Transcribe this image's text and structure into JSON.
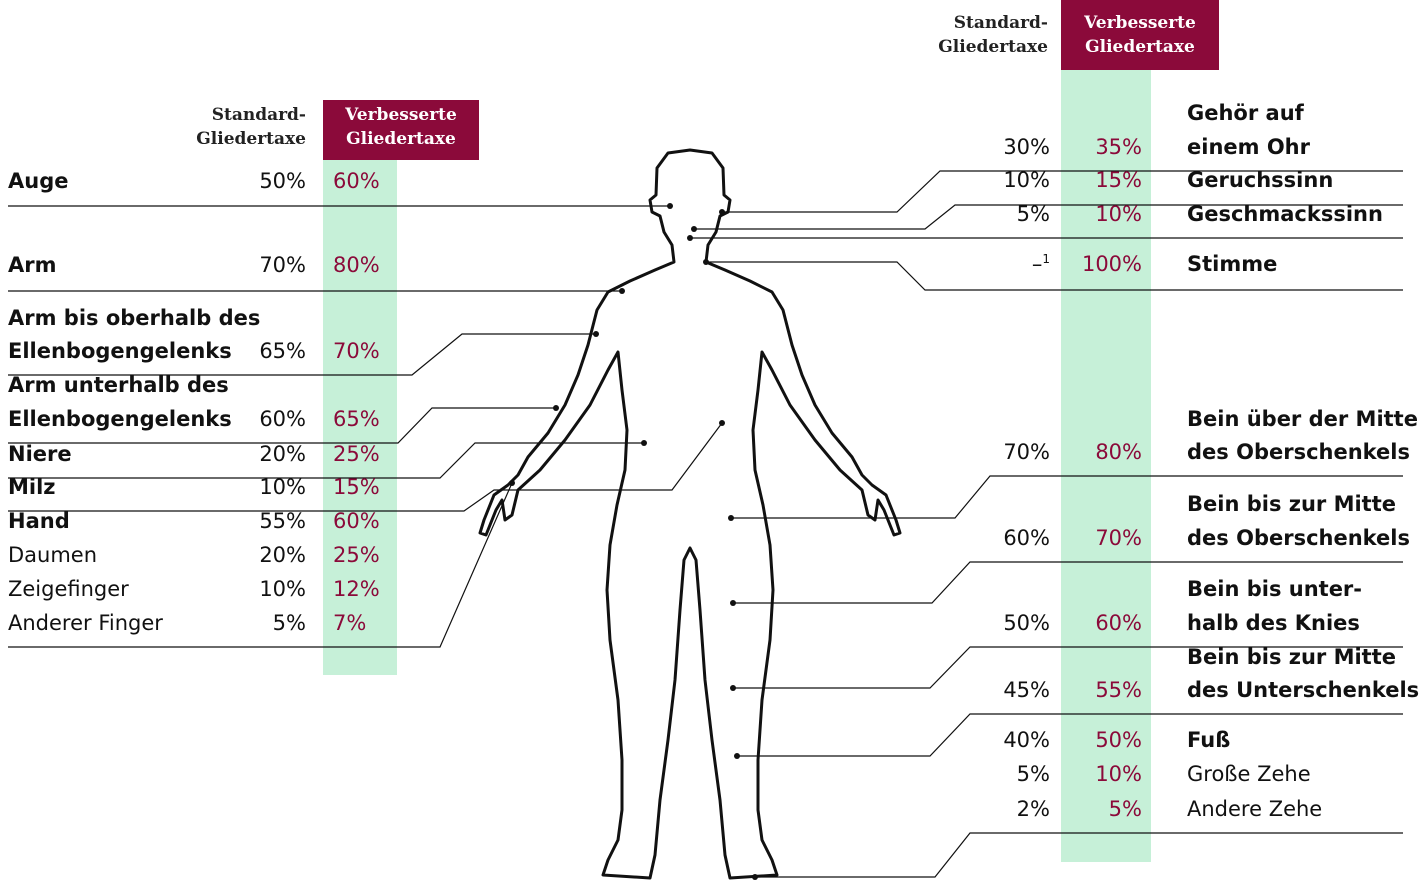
{
  "left": {
    "header": {
      "standard": [
        "Standard-",
        "Gliedertaxe"
      ],
      "improved": [
        "Verbesserte",
        "Gliedertaxe"
      ]
    },
    "rows": [
      {
        "label": [
          "Auge"
        ],
        "standard": "50%",
        "improved": "60%"
      },
      {
        "label": [
          "Arm"
        ],
        "standard": "70%",
        "improved": "80%"
      },
      {
        "label": [
          "Arm bis oberhalb des",
          "Ellenbogengelenks"
        ],
        "standard": "65%",
        "improved": "70%"
      },
      {
        "label": [
          "Arm unterhalb des",
          "Ellenbogengelenks"
        ],
        "standard": "60%",
        "improved": "65%"
      },
      {
        "label": [
          "Niere"
        ],
        "standard": "20%",
        "improved": "25%"
      },
      {
        "label": [
          "Milz"
        ],
        "standard": "10%",
        "improved": "15%"
      },
      {
        "label": [
          "Hand"
        ],
        "standard": "55%",
        "improved": "60%"
      },
      {
        "label": [
          "Daumen"
        ],
        "standard": "20%",
        "improved": "25%"
      },
      {
        "label": [
          "Zeigefinger"
        ],
        "standard": "10%",
        "improved": "12%"
      },
      {
        "label": [
          "Anderer Finger"
        ],
        "standard": "5%",
        "improved": "7%"
      }
    ]
  },
  "right": {
    "header": {
      "standard": [
        "Standard-",
        "Gliedertaxe"
      ],
      "improved": [
        "Verbesserte",
        "Gliedertaxe"
      ]
    },
    "rows": [
      {
        "label": [
          "Gehör auf",
          "einem Ohr"
        ],
        "standard": "30%",
        "improved": "35%"
      },
      {
        "label": [
          "Geruchssinn"
        ],
        "standard": "10%",
        "improved": "15%"
      },
      {
        "label": [
          "Geschmackssinn"
        ],
        "standard": "5%",
        "improved": "10%"
      },
      {
        "label": [
          "Stimme"
        ],
        "standard": "–",
        "footnote": "1",
        "improved": "100%"
      },
      {
        "label": [
          "Bein über der Mitte",
          "des Oberschenkels"
        ],
        "standard": "70%",
        "improved": "80%"
      },
      {
        "label": [
          "Bein bis zur Mitte",
          "des Oberschenkels"
        ],
        "standard": "60%",
        "improved": "70%"
      },
      {
        "label": [
          "Bein bis unter-",
          "halb des Knies"
        ],
        "standard": "50%",
        "improved": "60%"
      },
      {
        "label": [
          "Bein bis zur Mitte",
          "des Unterschenkels"
        ],
        "standard": "45%",
        "improved": "55%"
      },
      {
        "label": [
          "Fuß"
        ],
        "standard": "40%",
        "improved": "50%"
      },
      {
        "label": [
          "Große Zehe"
        ],
        "standard": "5%",
        "improved": "10%"
      },
      {
        "label": [
          "Andere Zehe"
        ],
        "standard": "2%",
        "improved": "5%"
      }
    ]
  }
}
